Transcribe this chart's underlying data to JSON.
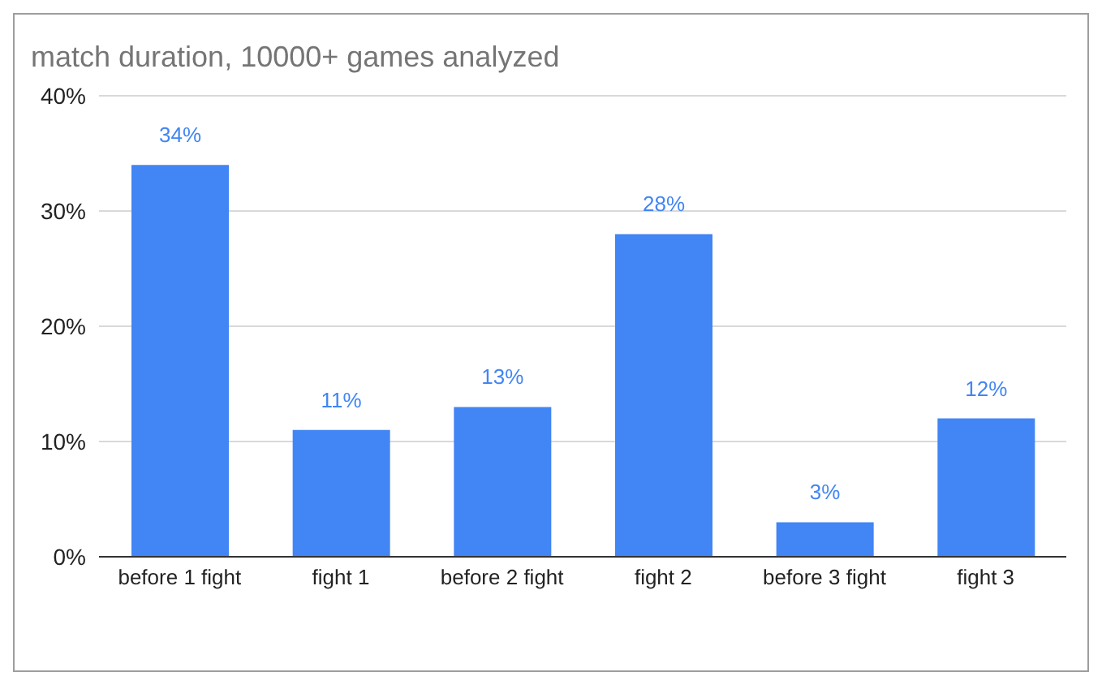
{
  "chart_data": {
    "type": "bar",
    "title": "match duration, 10000+ games analyzed",
    "categories": [
      "before 1 fight",
      "fight 1",
      "before 2 fight",
      "fight 2",
      "before 3 fight",
      "fight 3"
    ],
    "values": [
      34,
      11,
      13,
      28,
      3,
      12
    ],
    "value_labels": [
      "34%",
      "11%",
      "13%",
      "28%",
      "3%",
      "12%"
    ],
    "color": "#4285f4",
    "ylim": [
      0,
      40
    ],
    "yticks": [
      {
        "value": 0,
        "label": "0%"
      },
      {
        "value": 10,
        "label": "10%"
      },
      {
        "value": 20,
        "label": "20%"
      },
      {
        "value": 30,
        "label": "30%"
      },
      {
        "value": 40,
        "label": "40%"
      }
    ],
    "grid": "y"
  }
}
